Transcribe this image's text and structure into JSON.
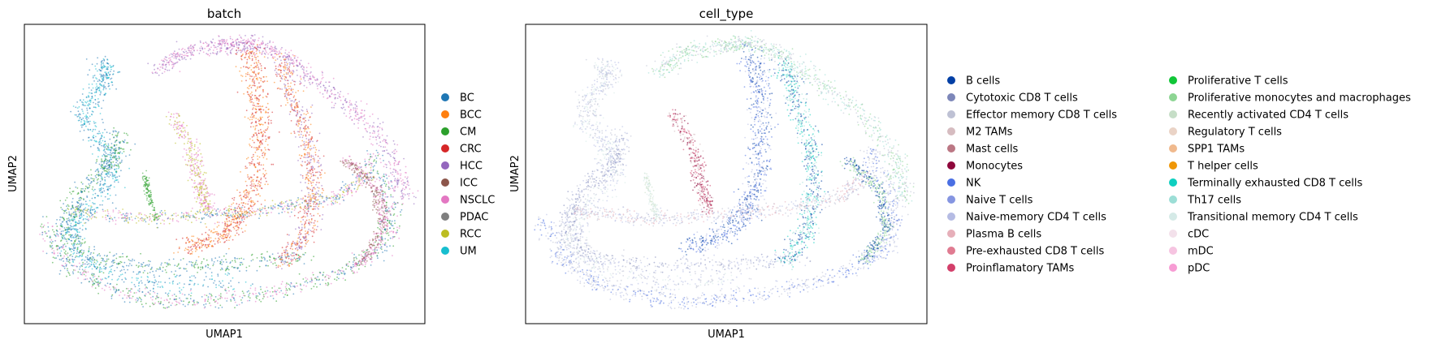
{
  "chart_data": [
    {
      "type": "scatter",
      "title": "batch",
      "xlabel": "UMAP1",
      "ylabel": "UMAP2",
      "grid": false,
      "ticks": false,
      "legend_placement": "right",
      "series": [
        {
          "name": "BC",
          "color": "#1f77b4"
        },
        {
          "name": "BCC",
          "color": "#ff7f0e"
        },
        {
          "name": "CM",
          "color": "#2ca02c"
        },
        {
          "name": "CRC",
          "color": "#d62728"
        },
        {
          "name": "HCC",
          "color": "#9467bd"
        },
        {
          "name": "ICC",
          "color": "#8c564b"
        },
        {
          "name": "NSCLC",
          "color": "#e377c2"
        },
        {
          "name": "PDAC",
          "color": "#7f7f7f"
        },
        {
          "name": "RCC",
          "color": "#bcbd22"
        },
        {
          "name": "UM",
          "color": "#17becf"
        }
      ]
    },
    {
      "type": "scatter",
      "title": "cell_type",
      "xlabel": "UMAP1",
      "ylabel": "UMAP2",
      "grid": false,
      "ticks": false,
      "legend_placement": "right",
      "series": [
        {
          "name": "B cells",
          "color": "#023fa5"
        },
        {
          "name": "Cytotoxic CD8 T cells",
          "color": "#7d87b9"
        },
        {
          "name": "Effector memory CD8 T cells",
          "color": "#bec1d4"
        },
        {
          "name": "M2 TAMs",
          "color": "#d6bcc0"
        },
        {
          "name": "Mast cells",
          "color": "#bb7784"
        },
        {
          "name": "Monocytes",
          "color": "#8e063b"
        },
        {
          "name": "NK",
          "color": "#4a6fe3"
        },
        {
          "name": "Naive T cells",
          "color": "#8595e1"
        },
        {
          "name": "Naive-memory CD4 T cells",
          "color": "#b5bbe3"
        },
        {
          "name": "Plasma B cells",
          "color": "#e6afb9"
        },
        {
          "name": "Pre-exhausted CD8 T cells",
          "color": "#e07b91"
        },
        {
          "name": "Proinflamatory TAMs",
          "color": "#d33f6a"
        },
        {
          "name": "Proliferative T cells",
          "color": "#11c638"
        },
        {
          "name": "Proliferative monocytes and macrophages",
          "color": "#8dd593"
        },
        {
          "name": "Recently activated CD4 T cells",
          "color": "#c6dec7"
        },
        {
          "name": "Regulatory T cells",
          "color": "#ead3c6"
        },
        {
          "name": "SPP1 TAMs",
          "color": "#f0b98d"
        },
        {
          "name": "T helper cells",
          "color": "#ef9708"
        },
        {
          "name": "Terminally exhausted CD8 T cells",
          "color": "#0fcfc0"
        },
        {
          "name": "Th17 cells",
          "color": "#9cded6"
        },
        {
          "name": "Transitional memory CD4 T cells",
          "color": "#d5eae7"
        },
        {
          "name": "cDC",
          "color": "#f3e1eb"
        },
        {
          "name": "mDC",
          "color": "#f6c4e1"
        },
        {
          "name": "pDC",
          "color": "#f79cd4"
        }
      ]
    }
  ]
}
